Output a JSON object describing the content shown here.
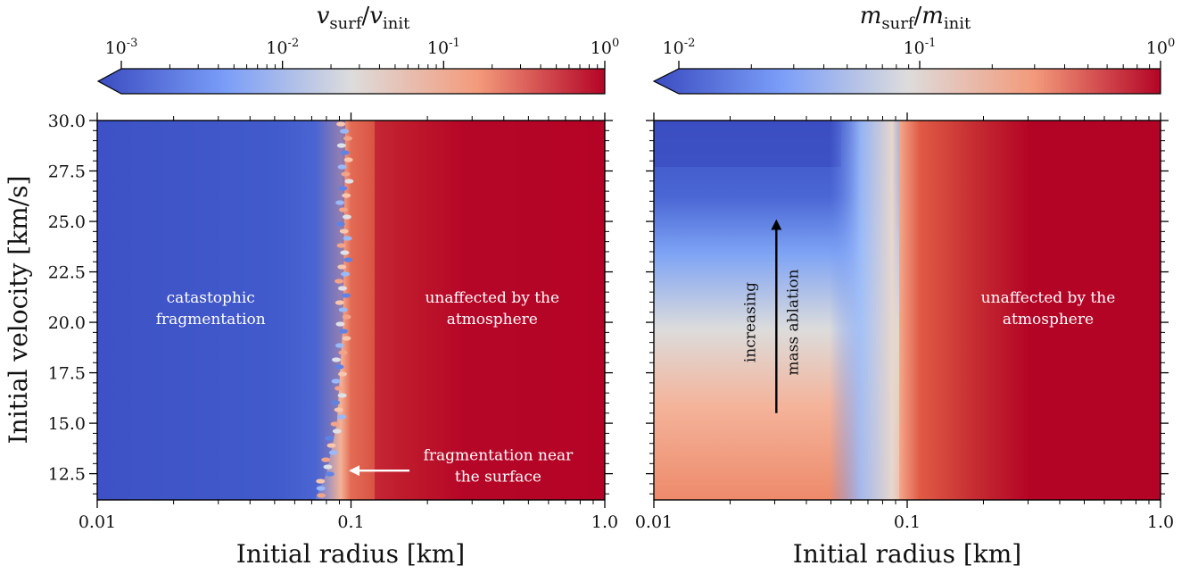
{
  "chart_data": [
    {
      "type": "heatmap",
      "panel": "left",
      "colorbar": {
        "label_main": "v",
        "label_num_sub": "surf",
        "label_den": "v",
        "label_den_sub": "init",
        "scale": "log",
        "extend": "min",
        "range": [
          0.001,
          1
        ],
        "tick_bases": [
          "10",
          "10",
          "10",
          "10"
        ],
        "tick_exponents": [
          "-3",
          "-2",
          "-1",
          "0"
        ],
        "tick_values": [
          0.001,
          0.01,
          0.1,
          1
        ]
      },
      "colormap": "coolwarm",
      "xlabel": "Initial radius [km]",
      "ylabel": "Initial velocity [km/s]",
      "xscale": "log",
      "xlim": [
        0.01,
        1.0
      ],
      "ylim": [
        11.2,
        30.0
      ],
      "xticks": [
        "0.01",
        "0.1",
        "1.0"
      ],
      "xtick_values": [
        0.01,
        0.1,
        1.0
      ],
      "yticks": [
        "12.5",
        "15.0",
        "17.5",
        "20.0",
        "22.5",
        "25.0",
        "27.5",
        "30.0"
      ],
      "ytick_values": [
        12.5,
        15.0,
        17.5,
        20.0,
        22.5,
        25.0,
        27.5,
        30.0
      ],
      "fragmentation_boundary_km": {
        "v": [
          30.0,
          25.0,
          20.0,
          15.0,
          12.5,
          11.2
        ],
        "r": [
          0.095,
          0.094,
          0.093,
          0.088,
          0.08,
          0.072
        ]
      },
      "annotations": [
        {
          "lines": [
            "catastophic",
            "fragmentation"
          ],
          "r_km": 0.028,
          "v": 20.8
        },
        {
          "lines": [
            "unaffected by the",
            "atmosphere"
          ],
          "r_km": 0.36,
          "v": 20.8
        },
        {
          "lines": [
            "fragmentation near",
            "the surface"
          ],
          "r_km": 0.38,
          "v": 13.0,
          "arrow_from_r_km": 0.17,
          "arrow_to_r_km": 0.1,
          "arrow_v": 12.65
        }
      ]
    },
    {
      "type": "heatmap",
      "panel": "right",
      "colorbar": {
        "label_main": "m",
        "label_num_sub": "surf",
        "label_den": "m",
        "label_den_sub": "init",
        "scale": "log",
        "extend": "min",
        "range": [
          0.01,
          1
        ],
        "tick_bases": [
          "10",
          "10",
          "10"
        ],
        "tick_exponents": [
          "-2",
          "-1",
          "0"
        ],
        "tick_values": [
          0.01,
          0.1,
          1
        ]
      },
      "colormap": "coolwarm",
      "xlabel": "Initial radius [km]",
      "xscale": "log",
      "xlim": [
        0.01,
        1.0
      ],
      "ylim": [
        11.2,
        30.0
      ],
      "xticks": [
        "0.01",
        "0.1",
        "1.0"
      ],
      "xtick_values": [
        0.01,
        0.1,
        1.0
      ],
      "ytick_values": [
        12.5,
        15.0,
        17.5,
        20.0,
        22.5,
        25.0,
        27.5,
        30.0
      ],
      "annotations": [
        {
          "lines": [
            "unaffected by the",
            "atmosphere"
          ],
          "r_km": 0.36,
          "v": 20.8
        },
        {
          "lines": [
            "increasing",
            "mass ablation"
          ],
          "r_km": 0.029,
          "v": 20.0,
          "rotated": true,
          "arrow_from_v": 15.5,
          "arrow_to_v": 25.0
        }
      ]
    }
  ]
}
